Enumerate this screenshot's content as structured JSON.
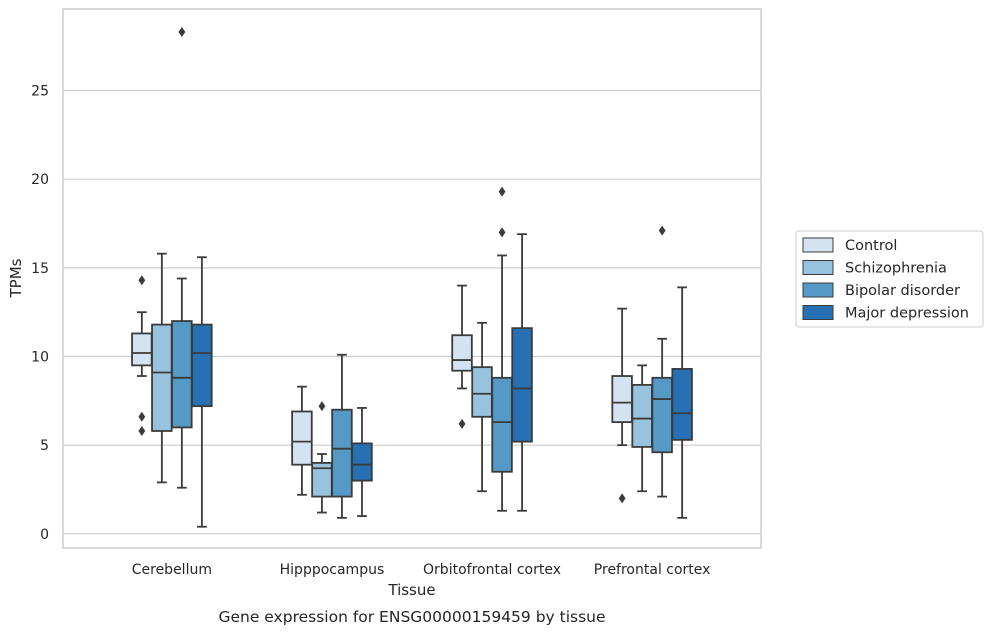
{
  "chart_data": {
    "type": "box",
    "caption": "Gene expression for ENSG00000159459 by tissue",
    "xlabel": "Tissue",
    "ylabel": "TPMs",
    "ylim": [
      -0.8,
      29.6
    ],
    "yticks": [
      0,
      5,
      10,
      15,
      20,
      25
    ],
    "grid": "horizontal",
    "legend_placement": "right",
    "categories": [
      "Cerebellum",
      "Hipppocampus",
      "Orbitofrontal cortex",
      "Prefrontal cortex"
    ],
    "series": [
      {
        "name": "Control",
        "color": "#d4e3f1",
        "boxes": [
          {
            "whislo": 8.9,
            "q1": 9.5,
            "med": 10.2,
            "q3": 11.3,
            "whishi": 12.5,
            "fliers": [
              14.3,
              6.6,
              5.8
            ]
          },
          {
            "whislo": 2.2,
            "q1": 3.9,
            "med": 5.2,
            "q3": 6.9,
            "whishi": 8.3,
            "fliers": []
          },
          {
            "whislo": 8.2,
            "q1": 9.2,
            "med": 9.8,
            "q3": 11.2,
            "whishi": 14.0,
            "fliers": [
              6.2
            ]
          },
          {
            "whislo": 5.0,
            "q1": 6.3,
            "med": 7.4,
            "q3": 8.9,
            "whishi": 12.7,
            "fliers": [
              2.0
            ]
          }
        ]
      },
      {
        "name": "Schizophrenia",
        "color": "#98c3de",
        "boxes": [
          {
            "whislo": 2.9,
            "q1": 5.8,
            "med": 9.1,
            "q3": 11.8,
            "whishi": 15.8,
            "fliers": []
          },
          {
            "whislo": 1.2,
            "q1": 2.1,
            "med": 3.7,
            "q3": 4.0,
            "whishi": 4.5,
            "fliers": [
              7.2
            ]
          },
          {
            "whislo": 2.4,
            "q1": 6.6,
            "med": 7.9,
            "q3": 9.4,
            "whishi": 11.9,
            "fliers": []
          },
          {
            "whislo": 2.4,
            "q1": 4.9,
            "med": 6.5,
            "q3": 8.4,
            "whishi": 9.5,
            "fliers": []
          }
        ]
      },
      {
        "name": "Bipolar disorder",
        "color": "#5599c6",
        "boxes": [
          {
            "whislo": 2.6,
            "q1": 6.0,
            "med": 8.8,
            "q3": 12.0,
            "whishi": 14.4,
            "fliers": [
              28.3
            ]
          },
          {
            "whislo": 0.9,
            "q1": 2.1,
            "med": 4.8,
            "q3": 7.0,
            "whishi": 10.1,
            "fliers": []
          },
          {
            "whislo": 1.3,
            "q1": 3.5,
            "med": 6.3,
            "q3": 8.8,
            "whishi": 15.7,
            "fliers": [
              17.0,
              19.3
            ]
          },
          {
            "whislo": 2.1,
            "q1": 4.6,
            "med": 7.6,
            "q3": 8.8,
            "whishi": 11.0,
            "fliers": [
              17.1
            ]
          }
        ]
      },
      {
        "name": "Major depression",
        "color": "#2670b3",
        "boxes": [
          {
            "whislo": 0.4,
            "q1": 7.2,
            "med": 10.2,
            "q3": 11.8,
            "whishi": 15.6,
            "fliers": []
          },
          {
            "whislo": 1.0,
            "q1": 3.0,
            "med": 3.9,
            "q3": 5.1,
            "whishi": 7.1,
            "fliers": []
          },
          {
            "whislo": 1.3,
            "q1": 5.2,
            "med": 8.2,
            "q3": 11.6,
            "whishi": 16.9,
            "fliers": []
          },
          {
            "whislo": 0.9,
            "q1": 5.3,
            "med": 6.8,
            "q3": 9.3,
            "whishi": 13.9,
            "fliers": []
          }
        ]
      }
    ]
  }
}
